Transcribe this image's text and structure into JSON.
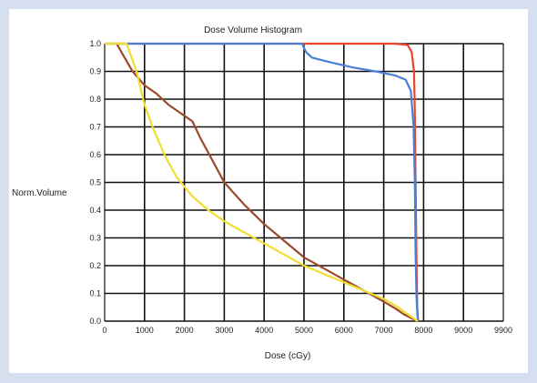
{
  "chart_data": {
    "type": "line",
    "title": "Dose Volume Histogram",
    "xlabel": "Dose (cGy)",
    "ylabel": "Norm.Volume",
    "xlim": [
      0,
      9000
    ],
    "ylim": [
      0,
      1
    ],
    "x_ticks": [
      "0",
      "1000",
      "2000",
      "3000",
      "4000",
      "5000",
      "6000",
      "7000",
      "8000",
      "9000",
      "9900"
    ],
    "y_ticks": [
      "0.0",
      "0.1",
      "0.2",
      "0.3",
      "0.4",
      "0.5",
      "0.6",
      "0.7",
      "0.8",
      "0.9",
      "1.0"
    ],
    "grid": true,
    "series": [
      {
        "color": "#e8452a",
        "points": [
          [
            0,
            1
          ],
          [
            6800,
            1
          ],
          [
            7300,
            1
          ],
          [
            7600,
            0.995
          ],
          [
            7700,
            0.97
          ],
          [
            7760,
            0.9
          ],
          [
            7780,
            0.75
          ],
          [
            7800,
            0.5
          ],
          [
            7820,
            0.25
          ],
          [
            7840,
            0.05
          ],
          [
            7860,
            0
          ]
        ]
      },
      {
        "color": "#4b7fd6",
        "points": [
          [
            0,
            1
          ],
          [
            4950,
            1
          ],
          [
            5050,
            0.97
          ],
          [
            5200,
            0.95
          ],
          [
            5600,
            0.935
          ],
          [
            6200,
            0.915
          ],
          [
            6800,
            0.9
          ],
          [
            7300,
            0.885
          ],
          [
            7550,
            0.87
          ],
          [
            7680,
            0.83
          ],
          [
            7750,
            0.7
          ],
          [
            7780,
            0.5
          ],
          [
            7800,
            0.25
          ],
          [
            7820,
            0.1
          ],
          [
            7840,
            0.03
          ],
          [
            7860,
            0
          ]
        ]
      },
      {
        "color": "#9b4a2c",
        "points": [
          [
            300,
            1
          ],
          [
            500,
            0.95
          ],
          [
            700,
            0.9
          ],
          [
            1000,
            0.85
          ],
          [
            1300,
            0.82
          ],
          [
            1600,
            0.78
          ],
          [
            2000,
            0.74
          ],
          [
            2200,
            0.72
          ],
          [
            2400,
            0.66
          ],
          [
            2700,
            0.58
          ],
          [
            3000,
            0.5
          ],
          [
            3500,
            0.42
          ],
          [
            4000,
            0.35
          ],
          [
            4500,
            0.29
          ],
          [
            5000,
            0.23
          ],
          [
            5500,
            0.19
          ],
          [
            6000,
            0.15
          ],
          [
            6500,
            0.11
          ],
          [
            7000,
            0.07
          ],
          [
            7300,
            0.045
          ],
          [
            7500,
            0.025
          ],
          [
            7700,
            0.01
          ],
          [
            7850,
            0
          ]
        ]
      },
      {
        "color": "#f0de30",
        "points": [
          [
            0,
            1
          ],
          [
            550,
            1
          ],
          [
            650,
            0.96
          ],
          [
            800,
            0.9
          ],
          [
            1000,
            0.78
          ],
          [
            1200,
            0.7
          ],
          [
            1500,
            0.6
          ],
          [
            1800,
            0.52
          ],
          [
            2200,
            0.45
          ],
          [
            2600,
            0.4
          ],
          [
            3000,
            0.36
          ],
          [
            3500,
            0.32
          ],
          [
            4000,
            0.28
          ],
          [
            4500,
            0.24
          ],
          [
            5000,
            0.2
          ],
          [
            5500,
            0.17
          ],
          [
            6000,
            0.14
          ],
          [
            6500,
            0.11
          ],
          [
            7000,
            0.08
          ],
          [
            7300,
            0.055
          ],
          [
            7500,
            0.035
          ],
          [
            7700,
            0.015
          ],
          [
            7850,
            0
          ]
        ]
      }
    ]
  }
}
